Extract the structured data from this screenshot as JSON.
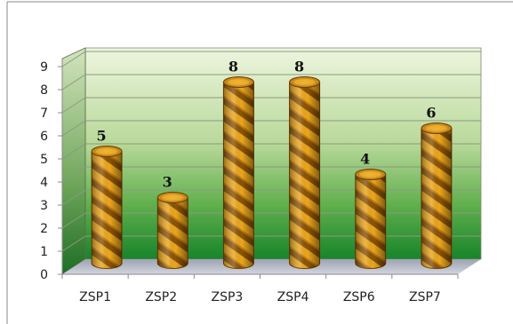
{
  "chart_data": {
    "type": "bar",
    "style": "3d-cylinder",
    "categories": [
      "ZSP1",
      "ZSP2",
      "ZSP3",
      "ZSP4",
      "ZSP6",
      "ZSP7"
    ],
    "values": [
      5,
      3,
      8,
      8,
      4,
      6
    ],
    "data_labels": [
      "5",
      "3",
      "8",
      "8",
      "4",
      "6"
    ],
    "yticks": [
      0,
      1,
      2,
      3,
      4,
      5,
      6,
      7,
      8,
      9
    ],
    "ylim": [
      0,
      9
    ],
    "grid": true,
    "legend": "none",
    "colors": {
      "bar": "#e8a317",
      "bar_stripe": "#7a4a05",
      "back_wall_top": "#eaf3d8",
      "back_wall_bottom": "#1f8a2a",
      "floor": "#b4b8c6",
      "side_wall": "#4e8a3a",
      "border": "#888888"
    }
  }
}
